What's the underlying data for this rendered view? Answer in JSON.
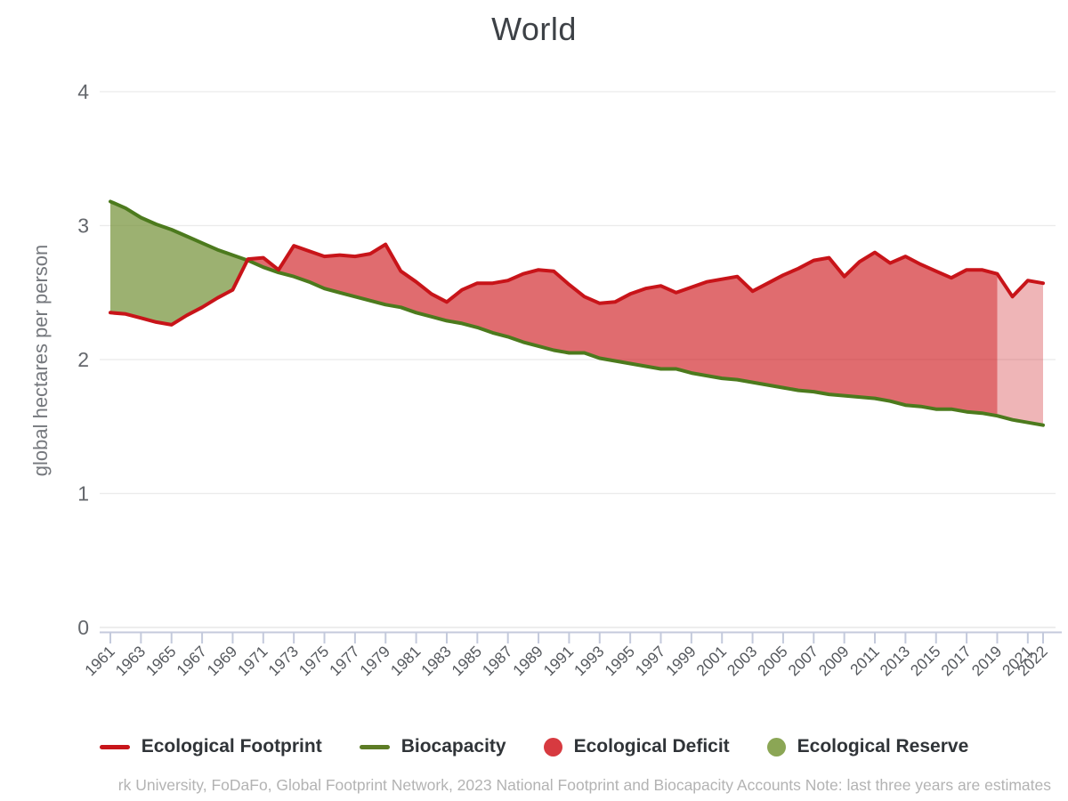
{
  "title": "World",
  "y_axis": {
    "label": "global hectares per person"
  },
  "legend": [
    {
      "label": "Ecological Footprint",
      "type": "line",
      "color": "#c8151a"
    },
    {
      "label": "Biocapacity",
      "type": "line",
      "color": "#5d7c25"
    },
    {
      "label": "Ecological Deficit",
      "type": "circle",
      "color": "#d73a40"
    },
    {
      "label": "Ecological Reserve",
      "type": "circle",
      "color": "#8ba655"
    }
  ],
  "footer": "rk University, FoDaFo, Global Footprint Network, 2023 National Footprint and Biocapacity Accounts Note: last three years are estimates",
  "chart_data": {
    "type": "area",
    "title": "World",
    "ylabel": "global hectares per person",
    "xlabel": "",
    "ylim": [
      0,
      4
    ],
    "xlim": [
      1961,
      2022
    ],
    "grid": "horizontal",
    "legend_position": "bottom",
    "y_ticks": [
      0,
      1,
      2,
      3,
      4
    ],
    "x_tick_labels": [
      1961,
      1963,
      1965,
      1967,
      1969,
      1971,
      1973,
      1975,
      1977,
      1979,
      1981,
      1983,
      1985,
      1987,
      1989,
      1991,
      1993,
      1995,
      1997,
      1999,
      2001,
      2003,
      2005,
      2007,
      2009,
      2011,
      2013,
      2015,
      2017,
      2019,
      2021,
      2022
    ],
    "x": [
      1961,
      1962,
      1963,
      1964,
      1965,
      1966,
      1967,
      1968,
      1969,
      1970,
      1971,
      1972,
      1973,
      1974,
      1975,
      1976,
      1977,
      1978,
      1979,
      1980,
      1981,
      1982,
      1983,
      1984,
      1985,
      1986,
      1987,
      1988,
      1989,
      1990,
      1991,
      1992,
      1993,
      1994,
      1995,
      1996,
      1997,
      1998,
      1999,
      2000,
      2001,
      2002,
      2003,
      2004,
      2005,
      2006,
      2007,
      2008,
      2009,
      2010,
      2011,
      2012,
      2013,
      2014,
      2015,
      2016,
      2017,
      2018,
      2019,
      2020,
      2021,
      2022
    ],
    "series": [
      {
        "name": "Ecological Footprint",
        "color": "#c81419",
        "values": [
          2.35,
          2.34,
          2.31,
          2.28,
          2.26,
          2.33,
          2.39,
          2.46,
          2.52,
          2.75,
          2.76,
          2.67,
          2.85,
          2.81,
          2.77,
          2.78,
          2.77,
          2.79,
          2.86,
          2.66,
          2.58,
          2.49,
          2.43,
          2.52,
          2.57,
          2.57,
          2.59,
          2.64,
          2.67,
          2.66,
          2.56,
          2.47,
          2.42,
          2.43,
          2.49,
          2.53,
          2.55,
          2.5,
          2.54,
          2.58,
          2.6,
          2.62,
          2.51,
          2.57,
          2.63,
          2.68,
          2.74,
          2.76,
          2.62,
          2.73,
          2.8,
          2.72,
          2.77,
          2.71,
          2.66,
          2.61,
          2.67,
          2.67,
          2.64,
          2.47,
          2.59,
          2.57
        ]
      },
      {
        "name": "Biocapacity",
        "color": "#4c7a1d",
        "values": [
          3.18,
          3.13,
          3.06,
          3.01,
          2.97,
          2.92,
          2.87,
          2.82,
          2.78,
          2.74,
          2.69,
          2.65,
          2.62,
          2.58,
          2.53,
          2.5,
          2.47,
          2.44,
          2.41,
          2.39,
          2.35,
          2.32,
          2.29,
          2.27,
          2.24,
          2.2,
          2.17,
          2.13,
          2.1,
          2.07,
          2.05,
          2.05,
          2.01,
          1.99,
          1.97,
          1.95,
          1.93,
          1.93,
          1.9,
          1.88,
          1.86,
          1.85,
          1.83,
          1.81,
          1.79,
          1.77,
          1.76,
          1.74,
          1.73,
          1.72,
          1.71,
          1.69,
          1.66,
          1.65,
          1.63,
          1.63,
          1.61,
          1.6,
          1.58,
          1.55,
          1.53,
          1.51
        ]
      }
    ],
    "estimate_start_year": 2019,
    "annotation": "last three years are estimates (shown with lighter shading)",
    "colors": {
      "deficit_fill": "rgba(203,10,15,0.60)",
      "deficit_fill_estimate": "rgba(203,10,15,0.30)",
      "reserve_fill": "rgba(109,140,46,0.68)",
      "axis": "#c4cadc",
      "grid": "#ebebeb",
      "grid_zero": "#e2e2e2",
      "y_tick_text": "#64676c",
      "x_tick_text": "#55585d"
    }
  }
}
